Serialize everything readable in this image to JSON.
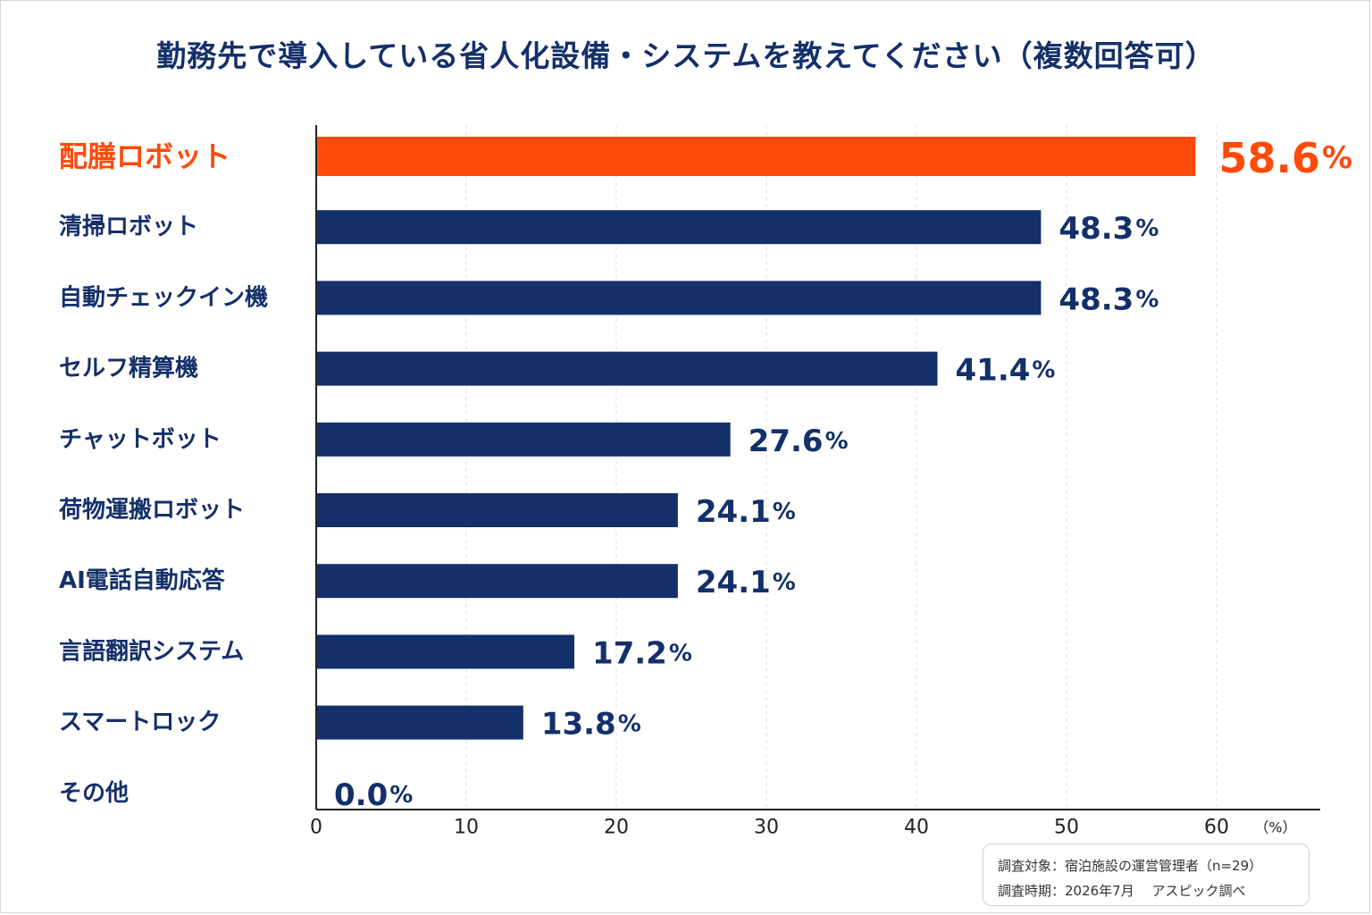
{
  "chart_data": {
    "type": "bar",
    "orientation": "horizontal",
    "title": "勤務先で導入している省人化設備・システムを教えてください（複数回答可）",
    "categories": [
      "配膳ロボット",
      "清掃ロボット",
      "自動チェックイン機",
      "セルフ精算機",
      "チャットボット",
      "荷物運搬ロボット",
      "AI電話自動応答",
      "言語翻訳システム",
      "スマートロック",
      "その他"
    ],
    "values": [
      58.6,
      48.3,
      48.3,
      41.4,
      27.6,
      24.1,
      24.1,
      17.2,
      13.8,
      0.0
    ],
    "data_labels": [
      "58.6",
      "48.3",
      "48.3",
      "41.4",
      "27.6",
      "24.1",
      "24.1",
      "17.2",
      "13.8",
      "0.0"
    ],
    "value_unit": "%",
    "highlight_index": 0,
    "x_ticks": [
      "0",
      "10",
      "20",
      "30",
      "40",
      "50",
      "60"
    ],
    "x_unit_label": "（%）",
    "xlim": [
      0,
      66
    ],
    "grid": true,
    "colors": {
      "bar": "#14306b",
      "highlight": "#ff4a0a",
      "text": "#14306b",
      "grid": "#dddddd",
      "axis": "#222222"
    }
  },
  "footnote": {
    "target": "調査対象：宿泊施設の運営管理者（n=29）",
    "period": "調査時期：2026年7月　 アスピック調べ"
  }
}
